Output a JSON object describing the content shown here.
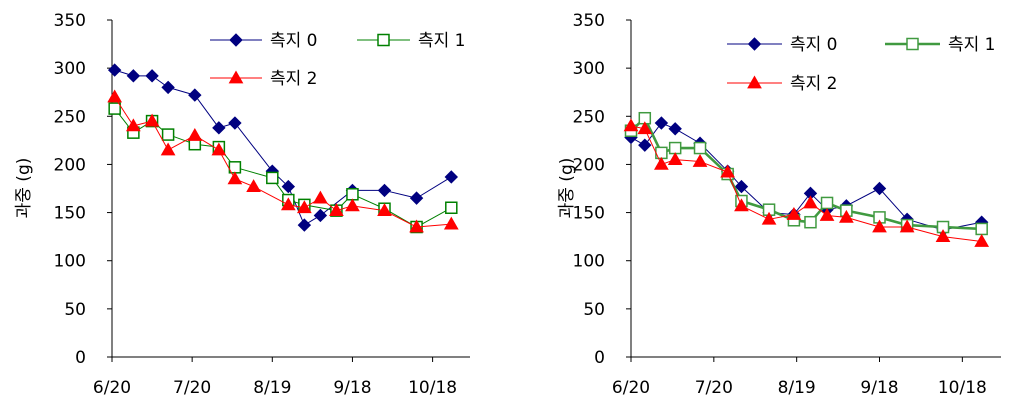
{
  "chart_data": [
    {
      "type": "line",
      "ylabel": "과중 (g)",
      "xlabel": "",
      "ylim": [
        0,
        350
      ],
      "yticks": [
        0,
        50,
        100,
        150,
        200,
        250,
        300,
        350
      ],
      "xlim": [
        "6/20",
        "11/1"
      ],
      "xtick_labels": [
        "6/20",
        "7/20",
        "8/19",
        "9/18",
        "10/18"
      ],
      "legend_position": "top-right",
      "series": [
        {
          "name": "측지 0",
          "color": "#000080",
          "marker": "diamond",
          "line_width": 1,
          "x": [
            "6/21",
            "6/28",
            "7/5",
            "7/11",
            "7/21",
            "7/30",
            "8/5",
            "8/19",
            "8/25",
            "8/31",
            "9/6",
            "9/18",
            "9/30",
            "10/12",
            "10/25"
          ],
          "y": [
            298,
            292,
            292,
            280,
            272,
            238,
            243,
            193,
            177,
            137,
            147,
            173,
            173,
            165,
            187
          ]
        },
        {
          "name": "측지 1",
          "color": "#008000",
          "marker": "square-open",
          "line_width": 1,
          "x": [
            "6/21",
            "6/28",
            "7/5",
            "7/11",
            "7/21",
            "7/30",
            "8/5",
            "8/19",
            "8/25",
            "8/31",
            "9/12",
            "9/18",
            "9/30",
            "10/12",
            "10/25"
          ],
          "y": [
            258,
            233,
            245,
            231,
            221,
            218,
            197,
            186,
            163,
            158,
            152,
            169,
            154,
            135,
            155
          ]
        },
        {
          "name": "측지 2",
          "color": "#ff0000",
          "marker": "triangle",
          "line_width": 1,
          "x": [
            "6/21",
            "6/28",
            "7/5",
            "7/11",
            "7/21",
            "7/30",
            "8/5",
            "8/12",
            "8/25",
            "8/31",
            "9/6",
            "9/12",
            "9/18",
            "9/30",
            "10/12",
            "10/25"
          ],
          "y": [
            270,
            240,
            245,
            215,
            230,
            215,
            185,
            177,
            158,
            155,
            165,
            152,
            157,
            152,
            135,
            138
          ]
        }
      ]
    },
    {
      "type": "line",
      "ylabel": "과중 (g)",
      "xlabel": "",
      "ylim": [
        0,
        350
      ],
      "yticks": [
        0,
        50,
        100,
        150,
        200,
        250,
        300,
        350
      ],
      "xlim": [
        "6/20",
        "11/1"
      ],
      "xtick_labels": [
        "6/20",
        "7/20",
        "8/19",
        "9/18",
        "10/18"
      ],
      "legend_position": "top-right",
      "series": [
        {
          "name": "측지 0",
          "color": "#000080",
          "marker": "diamond",
          "line_width": 1,
          "x": [
            "6/20",
            "6/25",
            "7/1",
            "7/6",
            "7/15",
            "7/25",
            "7/30",
            "8/9",
            "8/18",
            "8/24",
            "8/30",
            "9/6",
            "9/18",
            "9/28",
            "10/11",
            "10/25"
          ],
          "y": [
            228,
            220,
            243,
            237,
            222,
            193,
            177,
            150,
            148,
            170,
            153,
            157,
            175,
            143,
            132,
            140
          ]
        },
        {
          "name": "측지 1",
          "color": "#409a40",
          "marker": "square-open",
          "line_width": 2.6,
          "x": [
            "6/20",
            "6/25",
            "7/1",
            "7/6",
            "7/15",
            "7/25",
            "7/30",
            "8/9",
            "8/18",
            "8/24",
            "8/30",
            "9/6",
            "9/18",
            "9/28",
            "10/11",
            "10/25"
          ],
          "y": [
            235,
            248,
            212,
            217,
            217,
            190,
            162,
            153,
            142,
            140,
            160,
            152,
            145,
            137,
            135,
            133
          ]
        },
        {
          "name": "측지 2",
          "color": "#ff0000",
          "marker": "triangle",
          "line_width": 1,
          "x": [
            "6/20",
            "6/25",
            "7/1",
            "7/6",
            "7/15",
            "7/25",
            "7/30",
            "8/9",
            "8/18",
            "8/24",
            "8/30",
            "9/6",
            "9/18",
            "9/28",
            "10/11",
            "10/25"
          ],
          "y": [
            240,
            237,
            200,
            205,
            203,
            192,
            157,
            143,
            148,
            160,
            147,
            145,
            135,
            135,
            125,
            120
          ]
        }
      ]
    }
  ]
}
